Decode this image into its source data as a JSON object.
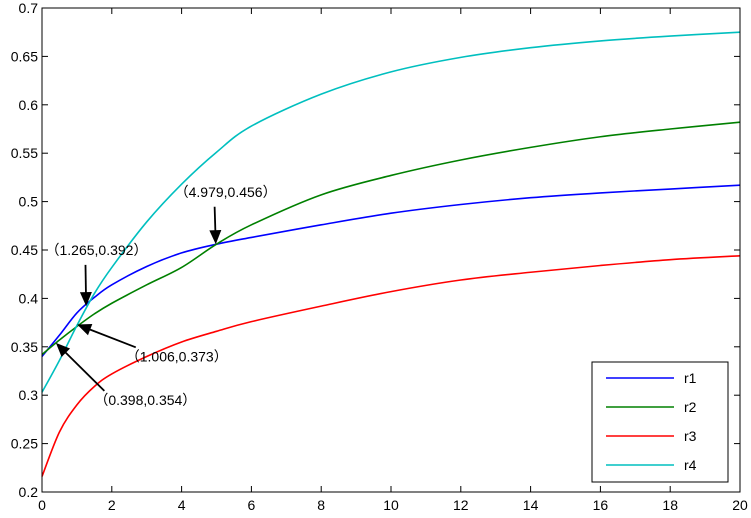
{
  "chart_data": {
    "type": "line",
    "title": "",
    "xlabel": "",
    "ylabel": "",
    "xlim": [
      0,
      20
    ],
    "ylim": [
      0.2,
      0.7
    ],
    "x_ticks": [
      0,
      2,
      4,
      6,
      8,
      10,
      12,
      14,
      16,
      18,
      20
    ],
    "y_ticks": [
      0.2,
      0.25,
      0.3,
      0.35,
      0.4,
      0.45,
      0.5,
      0.55,
      0.6,
      0.65,
      0.7
    ],
    "grid": false,
    "legend_position": "bottom-right",
    "x": [
      0,
      0.5,
      1,
      1.5,
      2,
      3,
      4,
      5,
      6,
      8,
      10,
      12,
      14,
      16,
      18,
      20
    ],
    "series": [
      {
        "name": "r1",
        "color": "#0000ff",
        "values": [
          0.34,
          0.362,
          0.385,
          0.401,
          0.414,
          0.433,
          0.447,
          0.456,
          0.463,
          0.476,
          0.488,
          0.497,
          0.504,
          0.509,
          0.513,
          0.517
        ]
      },
      {
        "name": "r2",
        "color": "#008000",
        "values": [
          0.342,
          0.357,
          0.371,
          0.384,
          0.395,
          0.414,
          0.432,
          0.456,
          0.476,
          0.507,
          0.527,
          0.543,
          0.556,
          0.567,
          0.575,
          0.582
        ]
      },
      {
        "name": "r3",
        "color": "#ff0000",
        "values": [
          0.216,
          0.262,
          0.29,
          0.309,
          0.322,
          0.34,
          0.355,
          0.366,
          0.376,
          0.392,
          0.407,
          0.419,
          0.427,
          0.434,
          0.44,
          0.444
        ]
      },
      {
        "name": "r4",
        "color": "#00bfbf",
        "values": [
          0.303,
          0.336,
          0.372,
          0.405,
          0.432,
          0.479,
          0.518,
          0.551,
          0.578,
          0.611,
          0.634,
          0.649,
          0.659,
          0.666,
          0.671,
          0.675
        ]
      }
    ],
    "annotations": [
      {
        "text": "（1.265,0.392）",
        "x": 1.265,
        "y": 0.392,
        "label_x": 0.1,
        "label_y": 0.445
      },
      {
        "text": "（4.979,0.456）",
        "x": 4.979,
        "y": 0.456,
        "label_x": 3.8,
        "label_y": 0.505
      },
      {
        "text": "（1.006,0.373）",
        "x": 1.006,
        "y": 0.373,
        "label_x": 2.4,
        "label_y": 0.335
      },
      {
        "text": "（0.398,0.354）",
        "x": 0.398,
        "y": 0.354,
        "label_x": 1.5,
        "label_y": 0.29
      }
    ]
  }
}
